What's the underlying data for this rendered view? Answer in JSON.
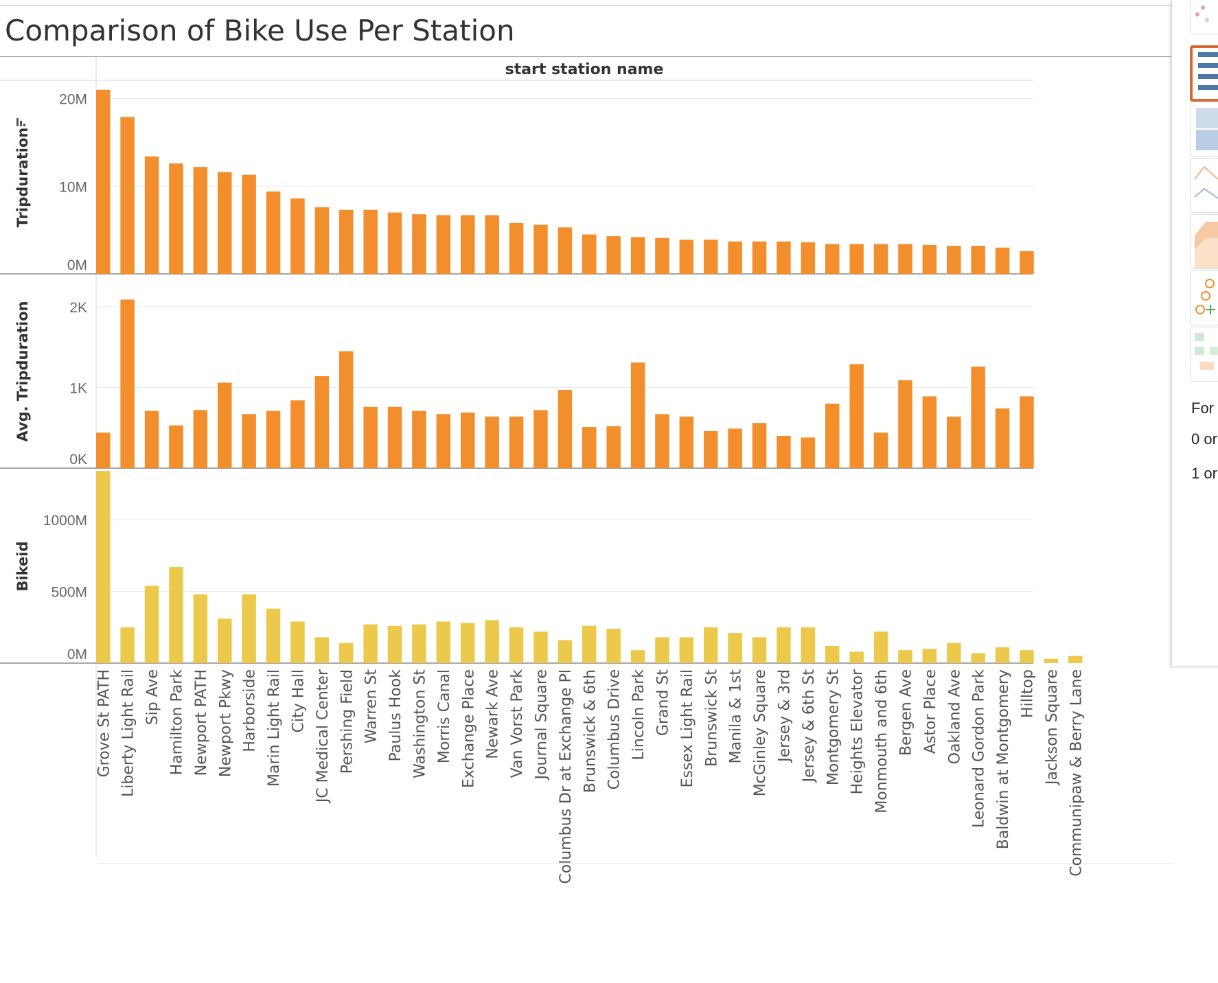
{
  "title": "Comparison of Bike Use Per Station",
  "colors": {
    "orange": "#f28e2b",
    "yellow": "#ecc94b",
    "selected_border": "#d9662f"
  },
  "chart_data": {
    "type": "bar",
    "column_header": "start station name",
    "categories": [
      "Grove St PATH",
      "Liberty Light Rail",
      "Sip Ave",
      "Hamilton Park",
      "Newport PATH",
      "Newport Pkwy",
      "Harborside",
      "Marin Light Rail",
      "City Hall",
      "JC Medical Center",
      "Pershing Field",
      "Warren St",
      "Paulus Hook",
      "Washington St",
      "Morris Canal",
      "Exchange Place",
      "Newark Ave",
      "Van Vorst Park",
      "Journal Square",
      "Columbus Dr at Exchange Pl",
      "Brunswick & 6th",
      "Columbus Drive",
      "Lincoln Park",
      "Grand St",
      "Essex Light Rail",
      "Brunswick St",
      "Manila & 1st",
      "McGinley Square",
      "Jersey & 3rd",
      "Jersey & 6th St",
      "Montgomery St",
      "Heights Elevator",
      "Monmouth and 6th",
      "Bergen Ave",
      "Astor Place",
      "Oakland Ave",
      "Leonard Gordon Park",
      "Baldwin at Montgomery",
      "Hilltop",
      "Jackson Square",
      "Communipaw & Berry Lane"
    ],
    "series": [
      {
        "name": "Tripduration",
        "color": "#f28e2b",
        "ylim": [
          0,
          22000000
        ],
        "ticks": [
          {
            "label": "20M",
            "value": 20000000
          },
          {
            "label": "10M",
            "value": 10000000
          },
          {
            "label": "0M",
            "value": 0
          }
        ],
        "values": [
          21000000,
          17900000,
          13400000,
          12600000,
          12200000,
          11600000,
          11300000,
          9400000,
          8600000,
          7600000,
          7300000,
          7300000,
          7000000,
          6800000,
          6700000,
          6700000,
          6700000,
          5800000,
          5600000,
          5300000,
          4500000,
          4300000,
          4200000,
          4100000,
          3900000,
          3900000,
          3700000,
          3700000,
          3700000,
          3600000,
          3400000,
          3400000,
          3400000,
          3400000,
          3300000,
          3200000,
          3200000,
          3000000,
          2600000,
          null,
          null
        ]
      },
      {
        "name": "Avg. Tripduration",
        "color": "#f28e2b",
        "ylim": [
          0,
          2400
        ],
        "ticks": [
          {
            "label": "2K",
            "value": 2000
          },
          {
            "label": "1K",
            "value": 1000
          },
          {
            "label": "0K",
            "value": 0
          }
        ],
        "values": [
          440,
          2090,
          710,
          530,
          720,
          1060,
          670,
          710,
          840,
          1140,
          1450,
          760,
          760,
          710,
          670,
          690,
          640,
          640,
          720,
          970,
          510,
          520,
          1310,
          670,
          640,
          460,
          490,
          560,
          400,
          380,
          800,
          1290,
          440,
          1090,
          890,
          640,
          1260,
          740,
          890,
          null,
          null
        ]
      },
      {
        "name": "Bikeid",
        "color": "#ecc94b",
        "ylim": [
          0,
          1350000000
        ],
        "ticks": [
          {
            "label": "1000M",
            "value": 1000000000
          },
          {
            "label": "500M",
            "value": 500000000
          },
          {
            "label": "0M",
            "value": 0
          }
        ],
        "values": [
          1340000000,
          250000000,
          540000000,
          670000000,
          480000000,
          310000000,
          480000000,
          380000000,
          290000000,
          180000000,
          140000000,
          270000000,
          260000000,
          270000000,
          290000000,
          280000000,
          300000000,
          250000000,
          220000000,
          160000000,
          260000000,
          240000000,
          90000000,
          180000000,
          180000000,
          250000000,
          210000000,
          180000000,
          250000000,
          250000000,
          120000000,
          80000000,
          220000000,
          90000000,
          100000000,
          140000000,
          70000000,
          110000000,
          90000000,
          30000000,
          50000000
        ]
      }
    ]
  },
  "side_panel": {
    "lines": [
      "For",
      "0 or",
      "1 or"
    ]
  }
}
